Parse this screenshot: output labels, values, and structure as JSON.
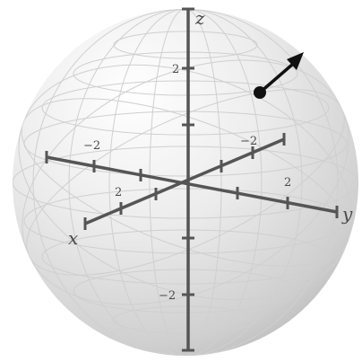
{
  "diagram": {
    "type": "bloch-sphere-3d-axes",
    "axes": {
      "x": {
        "label": "x",
        "tick_labels": [
          "−2",
          "2"
        ]
      },
      "y": {
        "label": "y",
        "tick_labels": [
          "−2",
          "2"
        ]
      },
      "z": {
        "label": "z",
        "tick_labels": [
          "2",
          "−2"
        ]
      }
    },
    "state_vector": {
      "style": "arrow-with-dot",
      "color": "#111111"
    },
    "colors": {
      "sphere_highlight": "#ffffff",
      "sphere_shadow": "#b9b9b9",
      "grid": "#cfcfcf",
      "axis": "#555555"
    }
  }
}
